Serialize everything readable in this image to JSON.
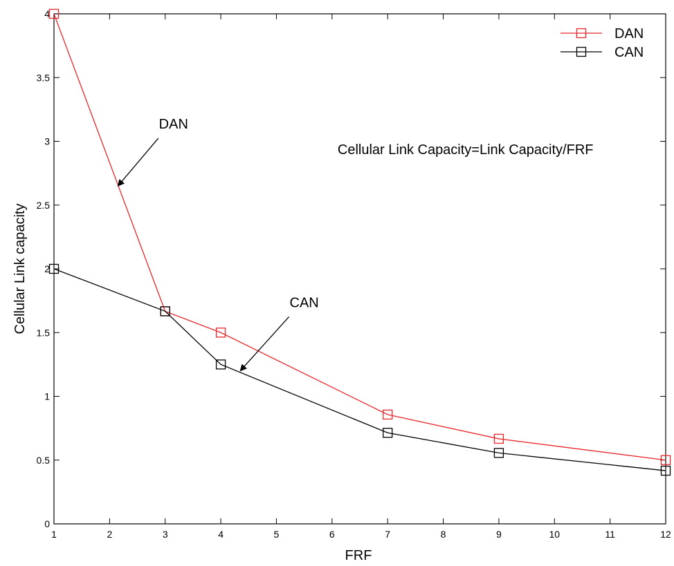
{
  "chart_data": {
    "type": "line",
    "xlabel": "FRF",
    "ylabel": "Cellular Link capacity",
    "xlim": [
      1,
      12
    ],
    "ylim": [
      0,
      4
    ],
    "xticks": [
      1,
      2,
      3,
      4,
      5,
      6,
      7,
      8,
      9,
      10,
      11,
      12
    ],
    "yticks": [
      0,
      0.5,
      1,
      1.5,
      2,
      2.5,
      3,
      3.5,
      4
    ],
    "ytick_labels": [
      "0",
      "0.5",
      "1",
      "1.5",
      "2",
      "2.5",
      "3",
      "3.5",
      "4"
    ],
    "grid": false,
    "legend_position": "top-right",
    "series": [
      {
        "name": "DAN",
        "color": "#e8262b",
        "marker": "square",
        "x": [
          1,
          3,
          4,
          7,
          9,
          12
        ],
        "y": [
          4.0,
          1.667,
          1.5,
          0.857,
          0.667,
          0.5
        ]
      },
      {
        "name": "CAN",
        "color": "#000000",
        "marker": "square",
        "x": [
          1,
          3,
          4,
          7,
          9,
          12
        ],
        "y": [
          2.0,
          1.667,
          1.25,
          0.714,
          0.556,
          0.417
        ]
      }
    ],
    "annotations": [
      {
        "text": "DAN",
        "x": 3.15,
        "y": 3.1,
        "arrow_to": [
          2.15,
          2.65
        ]
      },
      {
        "text": "CAN",
        "x": 5.5,
        "y": 1.7,
        "arrow_to": [
          4.35,
          1.2
        ]
      },
      {
        "text": "Cellular Link Capacity=Link Capacity/FRF",
        "x": 8.4,
        "y": 2.9
      }
    ]
  }
}
